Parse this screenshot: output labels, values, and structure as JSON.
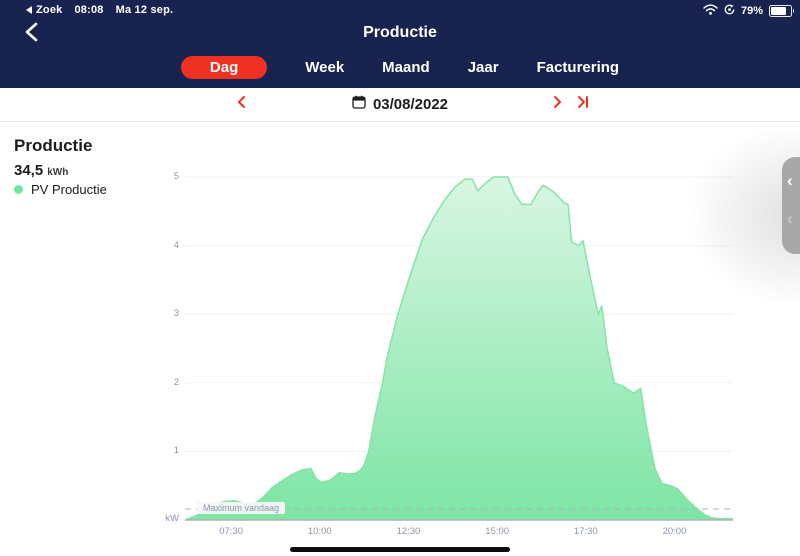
{
  "status_bar": {
    "back_to_app": "Zoek",
    "time": "08:08",
    "date": "Ma 12 sep.",
    "battery_percent": "79%"
  },
  "nav": {
    "title": "Productie"
  },
  "tabs": {
    "items": [
      {
        "label": "Dag",
        "active": true
      },
      {
        "label": "Week",
        "active": false
      },
      {
        "label": "Maand",
        "active": false
      },
      {
        "label": "Jaar",
        "active": false
      },
      {
        "label": "Facturering",
        "active": false
      }
    ]
  },
  "date_bar": {
    "date": "03/08/2022"
  },
  "panel": {
    "title": "Productie",
    "value": "34,5",
    "unit": "kWh",
    "legend": "PV Productie"
  },
  "colors": {
    "navy": "#192350",
    "accent_red": "#ee3123",
    "area_fill_top": "#d8f6e3",
    "area_fill_bottom": "#7de5a4",
    "area_stroke": "#85e3a8",
    "legend_dot": "#6ee7a2",
    "axis_text": "#8e95a9",
    "gridline": "#f0f1f4",
    "baseline": "#aab4c0",
    "dashed_line": "#aab1c2"
  },
  "chart_data": {
    "type": "area",
    "title": "PV Productie",
    "unit_label": "kW",
    "ylim": [
      0,
      5.25
    ],
    "xlim_hours": [
      6.2,
      21.65
    ],
    "grid": "horizontal",
    "y_ticks": [
      1,
      2,
      3,
      4,
      5
    ],
    "x_ticks": [
      {
        "hour": 7.5,
        "label": "07:30"
      },
      {
        "hour": 10.0,
        "label": "10:00"
      },
      {
        "hour": 12.5,
        "label": "12:30"
      },
      {
        "hour": 15.0,
        "label": "15:00"
      },
      {
        "hour": 17.5,
        "label": "17:30"
      },
      {
        "hour": 20.0,
        "label": "20:00"
      }
    ],
    "max_line": {
      "label": "Maximum vandaag",
      "value": 0.16
    },
    "series": [
      {
        "name": "PV Productie",
        "color": "#6ee7a2",
        "points": [
          [
            6.2,
            0.0
          ],
          [
            6.45,
            0.05
          ],
          [
            6.7,
            0.12
          ],
          [
            7.0,
            0.2
          ],
          [
            7.3,
            0.27
          ],
          [
            7.6,
            0.28
          ],
          [
            7.9,
            0.24
          ],
          [
            8.15,
            0.23
          ],
          [
            8.4,
            0.33
          ],
          [
            8.65,
            0.47
          ],
          [
            8.9,
            0.56
          ],
          [
            9.2,
            0.66
          ],
          [
            9.5,
            0.73
          ],
          [
            9.75,
            0.75
          ],
          [
            9.9,
            0.6
          ],
          [
            10.05,
            0.55
          ],
          [
            10.3,
            0.58
          ],
          [
            10.55,
            0.69
          ],
          [
            10.8,
            0.67
          ],
          [
            11.0,
            0.68
          ],
          [
            11.15,
            0.73
          ],
          [
            11.25,
            0.8
          ],
          [
            11.38,
            1.0
          ],
          [
            11.55,
            1.5
          ],
          [
            11.77,
            2.0
          ],
          [
            11.91,
            2.4
          ],
          [
            12.2,
            3.0
          ],
          [
            12.6,
            3.65
          ],
          [
            12.9,
            4.1
          ],
          [
            13.2,
            4.4
          ],
          [
            13.5,
            4.65
          ],
          [
            13.8,
            4.85
          ],
          [
            14.1,
            4.97
          ],
          [
            14.3,
            4.97
          ],
          [
            14.45,
            4.8
          ],
          [
            14.7,
            4.92
          ],
          [
            14.9,
            5.0
          ],
          [
            15.3,
            5.0
          ],
          [
            15.5,
            4.75
          ],
          [
            15.7,
            4.6
          ],
          [
            15.95,
            4.6
          ],
          [
            16.15,
            4.78
          ],
          [
            16.3,
            4.88
          ],
          [
            16.6,
            4.78
          ],
          [
            16.9,
            4.62
          ],
          [
            17.0,
            4.6
          ],
          [
            17.1,
            4.05
          ],
          [
            17.3,
            4.0
          ],
          [
            17.42,
            4.07
          ],
          [
            17.6,
            3.6
          ],
          [
            17.85,
            3.0
          ],
          [
            17.95,
            3.12
          ],
          [
            18.1,
            2.5
          ],
          [
            18.3,
            2.0
          ],
          [
            18.55,
            1.95
          ],
          [
            18.85,
            1.85
          ],
          [
            19.05,
            1.92
          ],
          [
            19.2,
            1.4
          ],
          [
            19.45,
            0.75
          ],
          [
            19.65,
            0.53
          ],
          [
            19.9,
            0.5
          ],
          [
            20.1,
            0.45
          ],
          [
            20.35,
            0.3
          ],
          [
            20.6,
            0.18
          ],
          [
            20.85,
            0.08
          ],
          [
            21.05,
            0.03
          ],
          [
            21.3,
            0.02
          ],
          [
            21.65,
            0.02
          ]
        ]
      }
    ]
  }
}
